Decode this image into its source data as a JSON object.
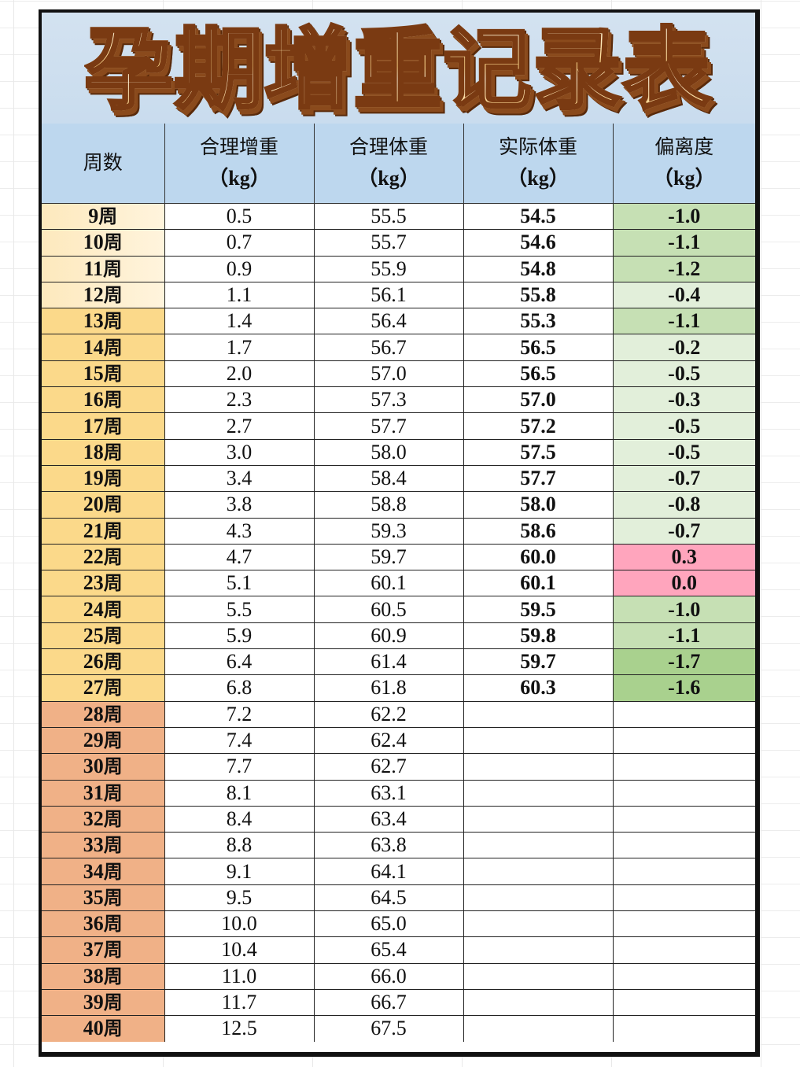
{
  "title": "孕期增重记录表",
  "headers": [
    {
      "label": "周数",
      "unit": ""
    },
    {
      "label": "合理增重",
      "unit": "（kg）"
    },
    {
      "label": "合理体重",
      "unit": "（kg）"
    },
    {
      "label": "实际体重",
      "unit": "（kg）"
    },
    {
      "label": "偏离度",
      "unit": "（kg）"
    }
  ],
  "colors": {
    "header_bg": "#bdd7ee",
    "title_bg": "#d3e2f0",
    "week_early": "#fdeec8",
    "week_mid": "#fbd98a",
    "week_late": "#f0b187",
    "dev_strong_green": "#a9d18e",
    "dev_green": "#c6e0b4",
    "dev_light_green": "#e2efda",
    "dev_pink": "#ffa5bd"
  },
  "rows": [
    {
      "week": "9",
      "wk_suffix": "周",
      "gain": "0.5",
      "target": "55.5",
      "actual": "54.5",
      "dev": "-1.0",
      "week_tone": "early",
      "dev_tone": "green"
    },
    {
      "week": "10",
      "wk_suffix": "周",
      "gain": "0.7",
      "target": "55.7",
      "actual": "54.6",
      "dev": "-1.1",
      "week_tone": "early",
      "dev_tone": "green"
    },
    {
      "week": "11",
      "wk_suffix": "周",
      "gain": "0.9",
      "target": "55.9",
      "actual": "54.8",
      "dev": "-1.2",
      "week_tone": "early",
      "dev_tone": "green"
    },
    {
      "week": "12",
      "wk_suffix": "周",
      "gain": "1.1",
      "target": "56.1",
      "actual": "55.8",
      "dev": "-0.4",
      "week_tone": "early",
      "dev_tone": "light"
    },
    {
      "week": "13",
      "wk_suffix": "周",
      "gain": "1.4",
      "target": "56.4",
      "actual": "55.3",
      "dev": "-1.1",
      "week_tone": "mid",
      "dev_tone": "green"
    },
    {
      "week": "14",
      "wk_suffix": "周",
      "gain": "1.7",
      "target": "56.7",
      "actual": "56.5",
      "dev": "-0.2",
      "week_tone": "mid",
      "dev_tone": "light"
    },
    {
      "week": "15",
      "wk_suffix": "周",
      "gain": "2.0",
      "target": "57.0",
      "actual": "56.5",
      "dev": "-0.5",
      "week_tone": "mid",
      "dev_tone": "light"
    },
    {
      "week": "16",
      "wk_suffix": "周",
      "gain": "2.3",
      "target": "57.3",
      "actual": "57.0",
      "dev": "-0.3",
      "week_tone": "mid",
      "dev_tone": "light"
    },
    {
      "week": "17",
      "wk_suffix": "周",
      "gain": "2.7",
      "target": "57.7",
      "actual": "57.2",
      "dev": "-0.5",
      "week_tone": "mid",
      "dev_tone": "light"
    },
    {
      "week": "18",
      "wk_suffix": "周",
      "gain": "3.0",
      "target": "58.0",
      "actual": "57.5",
      "dev": "-0.5",
      "week_tone": "mid",
      "dev_tone": "light"
    },
    {
      "week": "19",
      "wk_suffix": "周",
      "gain": "3.4",
      "target": "58.4",
      "actual": "57.7",
      "dev": "-0.7",
      "week_tone": "mid",
      "dev_tone": "light"
    },
    {
      "week": "20",
      "wk_suffix": "周",
      "gain": "3.8",
      "target": "58.8",
      "actual": "58.0",
      "dev": "-0.8",
      "week_tone": "mid",
      "dev_tone": "light"
    },
    {
      "week": "21",
      "wk_suffix": "周",
      "gain": "4.3",
      "target": "59.3",
      "actual": "58.6",
      "dev": "-0.7",
      "week_tone": "mid",
      "dev_tone": "light"
    },
    {
      "week": "22",
      "wk_suffix": "周",
      "gain": "4.7",
      "target": "59.7",
      "actual": "60.0",
      "dev": "0.3",
      "week_tone": "mid",
      "dev_tone": "pink"
    },
    {
      "week": "23",
      "wk_suffix": "周",
      "gain": "5.1",
      "target": "60.1",
      "actual": "60.1",
      "dev": "0.0",
      "week_tone": "mid",
      "dev_tone": "pink"
    },
    {
      "week": "24",
      "wk_suffix": "周",
      "gain": "5.5",
      "target": "60.5",
      "actual": "59.5",
      "dev": "-1.0",
      "week_tone": "mid",
      "dev_tone": "green"
    },
    {
      "week": "25",
      "wk_suffix": "周",
      "gain": "5.9",
      "target": "60.9",
      "actual": "59.8",
      "dev": "-1.1",
      "week_tone": "mid",
      "dev_tone": "green"
    },
    {
      "week": "26",
      "wk_suffix": "周",
      "gain": "6.4",
      "target": "61.4",
      "actual": "59.7",
      "dev": "-1.7",
      "week_tone": "mid",
      "dev_tone": "strong"
    },
    {
      "week": "27",
      "wk_suffix": "周",
      "gain": "6.8",
      "target": "61.8",
      "actual": "60.3",
      "dev": "-1.6",
      "week_tone": "mid",
      "dev_tone": "strong"
    },
    {
      "week": "28",
      "wk_suffix": "周",
      "gain": "7.2",
      "target": "62.2",
      "actual": "",
      "dev": "",
      "week_tone": "late",
      "dev_tone": "none"
    },
    {
      "week": "29",
      "wk_suffix": "周",
      "gain": "7.4",
      "target": "62.4",
      "actual": "",
      "dev": "",
      "week_tone": "late",
      "dev_tone": "none"
    },
    {
      "week": "30",
      "wk_suffix": "周",
      "gain": "7.7",
      "target": "62.7",
      "actual": "",
      "dev": "",
      "week_tone": "late",
      "dev_tone": "none"
    },
    {
      "week": "31",
      "wk_suffix": "周",
      "gain": "8.1",
      "target": "63.1",
      "actual": "",
      "dev": "",
      "week_tone": "late",
      "dev_tone": "none"
    },
    {
      "week": "32",
      "wk_suffix": "周",
      "gain": "8.4",
      "target": "63.4",
      "actual": "",
      "dev": "",
      "week_tone": "late",
      "dev_tone": "none"
    },
    {
      "week": "33",
      "wk_suffix": "周",
      "gain": "8.8",
      "target": "63.8",
      "actual": "",
      "dev": "",
      "week_tone": "late",
      "dev_tone": "none"
    },
    {
      "week": "34",
      "wk_suffix": "周",
      "gain": "9.1",
      "target": "64.1",
      "actual": "",
      "dev": "",
      "week_tone": "late",
      "dev_tone": "none"
    },
    {
      "week": "35",
      "wk_suffix": "周",
      "gain": "9.5",
      "target": "64.5",
      "actual": "",
      "dev": "",
      "week_tone": "late",
      "dev_tone": "none"
    },
    {
      "week": "36",
      "wk_suffix": "周",
      "gain": "10.0",
      "target": "65.0",
      "actual": "",
      "dev": "",
      "week_tone": "late",
      "dev_tone": "none"
    },
    {
      "week": "37",
      "wk_suffix": "周",
      "gain": "10.4",
      "target": "65.4",
      "actual": "",
      "dev": "",
      "week_tone": "late",
      "dev_tone": "none"
    },
    {
      "week": "38",
      "wk_suffix": "周",
      "gain": "11.0",
      "target": "66.0",
      "actual": "",
      "dev": "",
      "week_tone": "late",
      "dev_tone": "none"
    },
    {
      "week": "39",
      "wk_suffix": "周",
      "gain": "11.7",
      "target": "66.7",
      "actual": "",
      "dev": "",
      "week_tone": "late",
      "dev_tone": "none"
    },
    {
      "week": "40",
      "wk_suffix": "周",
      "gain": "12.5",
      "target": "67.5",
      "actual": "",
      "dev": "",
      "week_tone": "late",
      "dev_tone": "none"
    }
  ]
}
